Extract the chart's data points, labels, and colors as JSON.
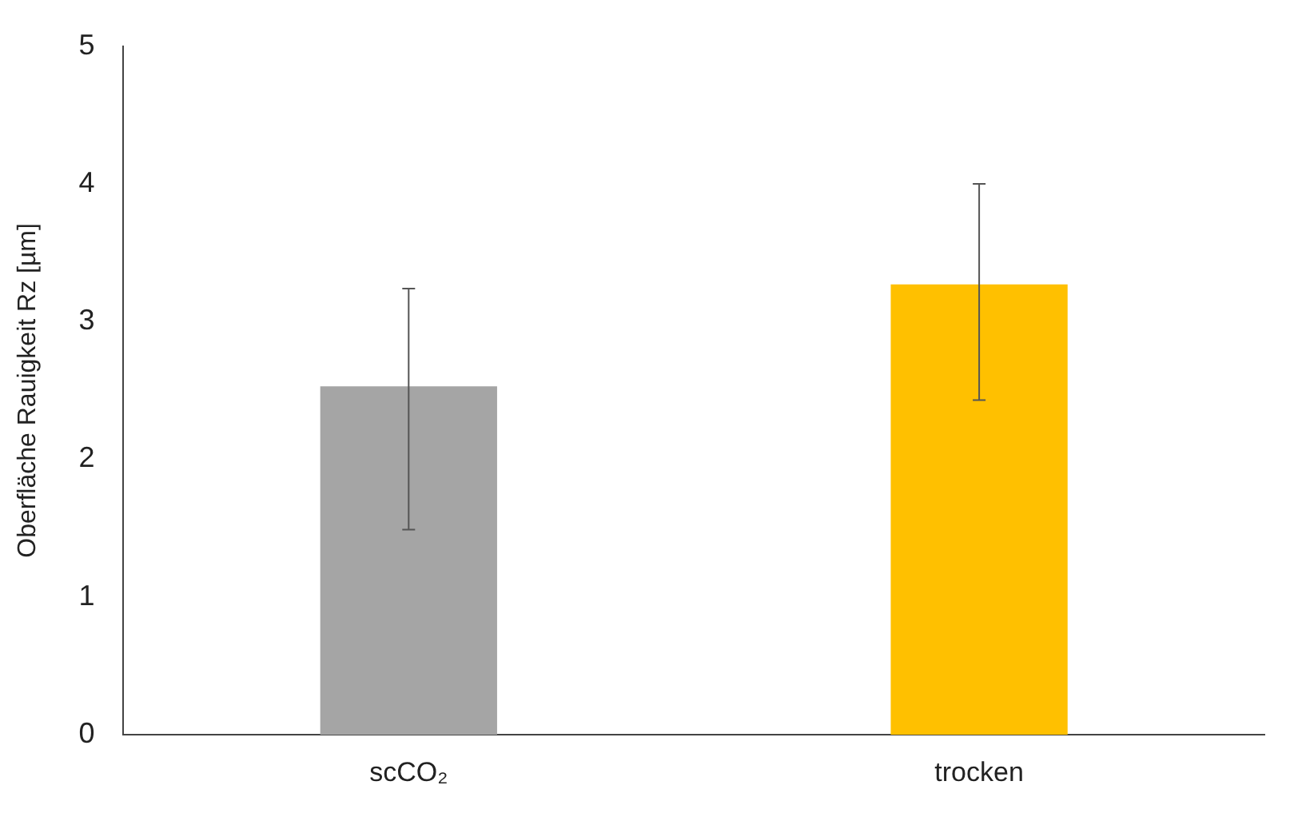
{
  "chart_data": {
    "type": "bar",
    "ylabel": "Oberfläche Rauigkeit Rz [µm]",
    "categories": [
      "scCO₂",
      "trocken"
    ],
    "values": [
      2.53,
      3.27
    ],
    "colors": [
      "#a5a5a5",
      "#ffc000"
    ],
    "errors": [
      [
        1.49,
        3.24
      ],
      [
        2.43,
        4.0
      ]
    ],
    "ylim": [
      0,
      5
    ],
    "yticks": [
      0,
      1,
      2,
      3,
      4,
      5
    ]
  }
}
